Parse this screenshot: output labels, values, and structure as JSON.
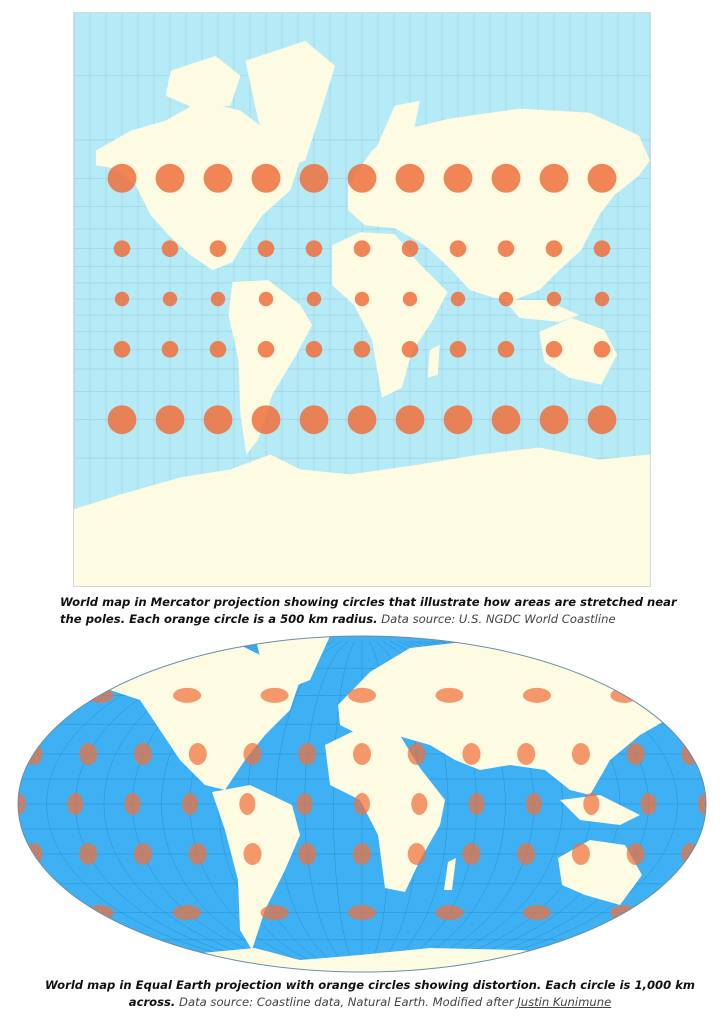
{
  "colors": {
    "mercator_ocean": "#b5eaf7",
    "equal_earth_ocean": "#3eb0f4",
    "land": "#fdfbe2",
    "circle": "#f0703c",
    "graticule": "#8fb8c8"
  },
  "mercator": {
    "projection": "Mercator",
    "circle_radius_km": 500,
    "circle_latitudes": [
      60,
      30,
      0,
      -30,
      -60
    ],
    "circle_longitudes": [
      -150,
      -120,
      -90,
      -60,
      -30,
      0,
      30,
      60,
      90,
      120,
      150
    ],
    "caption": {
      "bold": "World map in Mercator projection showing circles that illustrate how areas are stretched near the poles. Each orange circle is a 500 km radius.",
      "source": "Data source: U.S. NGDC World Coastline"
    }
  },
  "equal_earth": {
    "projection": "Equal Earth",
    "circle_diameter_km": 1000,
    "circle_rows": [
      {
        "lat": 60,
        "lon_step": 60
      },
      {
        "lat": 30,
        "lon_step": 30
      },
      {
        "lat": 0,
        "lon_step": 30
      },
      {
        "lat": -30,
        "lon_step": 30
      },
      {
        "lat": -60,
        "lon_step": 60
      }
    ],
    "caption": {
      "bold": "World map in Equal Earth projection with orange circles showing distortion. Each circle is 1,000 km across.",
      "source": "Data source: Coastline data, Natural Earth. Modified after",
      "link": "Justin Kunimune"
    }
  }
}
